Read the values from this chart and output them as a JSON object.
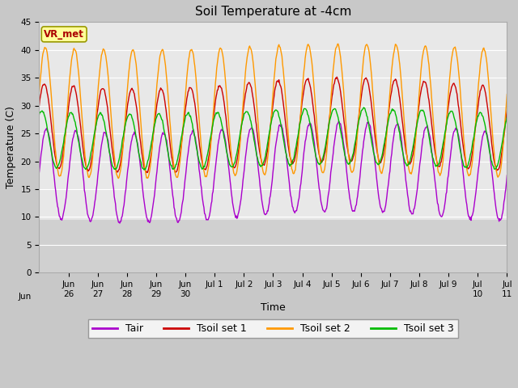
{
  "title": "Soil Temperature at -4cm",
  "xlabel": "Time",
  "ylabel": "Temperature (C)",
  "ylim": [
    0,
    45
  ],
  "yticks": [
    0,
    5,
    10,
    15,
    20,
    25,
    30,
    35,
    40,
    45
  ],
  "figure_bg": "#c8c8c8",
  "plot_bg": "#e8e8e8",
  "lower_band_bg": "#d0d0d0",
  "colors": {
    "Tair": "#aa00cc",
    "Tsoil1": "#cc0000",
    "Tsoil2": "#ff9900",
    "Tsoil3": "#00bb00"
  },
  "legend_labels": [
    "Tair",
    "Tsoil set 1",
    "Tsoil set 2",
    "Tsoil set 3"
  ],
  "annotation_text": "VR_met",
  "annotation_color": "#aa0000",
  "annotation_bg": "#ffff99",
  "annotation_border": "#999900",
  "n_days": 16,
  "title_fontsize": 11,
  "tick_fontsize": 7.5,
  "axis_label_fontsize": 9,
  "legend_fontsize": 9,
  "linewidth": 1.0
}
